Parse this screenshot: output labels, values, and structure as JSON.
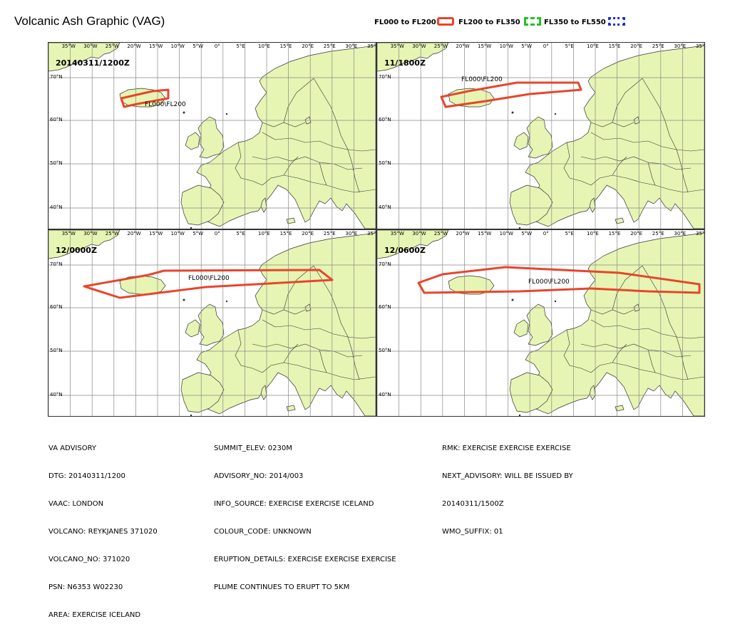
{
  "title": "Volcanic Ash Graphic (VAG)",
  "legend": [
    {
      "label": "FL000 to FL200",
      "color": "",
      "style": "none"
    },
    {
      "label": "FL200 to FL350",
      "color": "#e8452c",
      "style": "solid"
    },
    {
      "label": "FL350 to FL550",
      "color": "#22c322",
      "style": "dashed"
    }
  ],
  "legend_extra_color": "#1f2fd0",
  "colors": {
    "land": "#e6f5b3",
    "grid": "#888888",
    "ash": "#e8452c"
  },
  "lon_ticks": [
    "35°W",
    "30°W",
    "25°W",
    "20°W",
    "15°W",
    "10°W",
    "5°W",
    "0°",
    "5°E",
    "10°E",
    "15°E",
    "20°E",
    "25°E",
    "30°E",
    "35°E"
  ],
  "lat_ticks": [
    "70°N",
    "60°N",
    "50°N",
    "40°N"
  ],
  "panels": [
    {
      "label": "20140311/1200Z",
      "fl_label": "FL000\\FL200"
    },
    {
      "label": "11/1800Z",
      "fl_label": "FL000\\FL200"
    },
    {
      "label": "12/0000Z",
      "fl_label": "FL000\\FL200"
    },
    {
      "label": "12/0600Z",
      "fl_label": "FL000\\FL200"
    }
  ],
  "advisory": {
    "col1": [
      "VA ADVISORY",
      "DTG: 20140311/1200",
      "VAAC: LONDON",
      "VOLCANO: REYKJANES 371020",
      "VOLCANO_NO: 371020",
      "PSN: N6353 W02230",
      "AREA: EXERCISE ICELAND"
    ],
    "col2": [
      "SUMMIT_ELEV: 0230M",
      "ADVISORY_NO: 2014/003",
      "INFO_SOURCE: EXERCISE EXERCISE ICELAND",
      "COLOUR_CODE: UNKNOWN",
      "ERUPTION_DETAILS: EXERCISE EXERCISE EXERCISE",
      "PLUME CONTINUES TO ERUPT TO 5KM"
    ],
    "col3": [
      "RMK: EXERCISE EXERCISE EXERCISE",
      "NEXT_ADVISORY: WILL BE ISSUED BY",
      "20140311/1500Z",
      "WMO_SUFFIX: 01"
    ]
  }
}
